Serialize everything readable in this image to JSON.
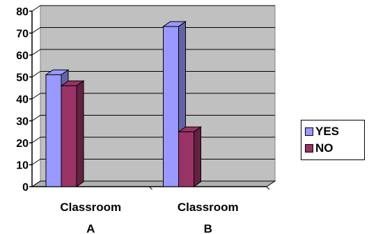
{
  "chart_data": {
    "type": "bar",
    "categories": [
      "Classroom A",
      "Classroom B"
    ],
    "category_label_lines": [
      [
        "Classroom",
        "A"
      ],
      [
        "Classroom",
        "B"
      ]
    ],
    "series": [
      {
        "name": "YES",
        "values": [
          51,
          73
        ],
        "color": "#9999FF"
      },
      {
        "name": "NO",
        "values": [
          46,
          25
        ],
        "color": "#993366"
      }
    ],
    "ylim": [
      0,
      80
    ],
    "yticks": [
      0,
      10,
      20,
      30,
      40,
      50,
      60,
      70,
      80
    ],
    "grid": true,
    "legend_position": "right",
    "wall_color": "#C0C0C0",
    "title": "",
    "xlabel": "",
    "ylabel": ""
  },
  "legend": {
    "items": [
      {
        "label": "YES",
        "color": "#9999FF"
      },
      {
        "label": "NO",
        "color": "#993366"
      }
    ]
  }
}
